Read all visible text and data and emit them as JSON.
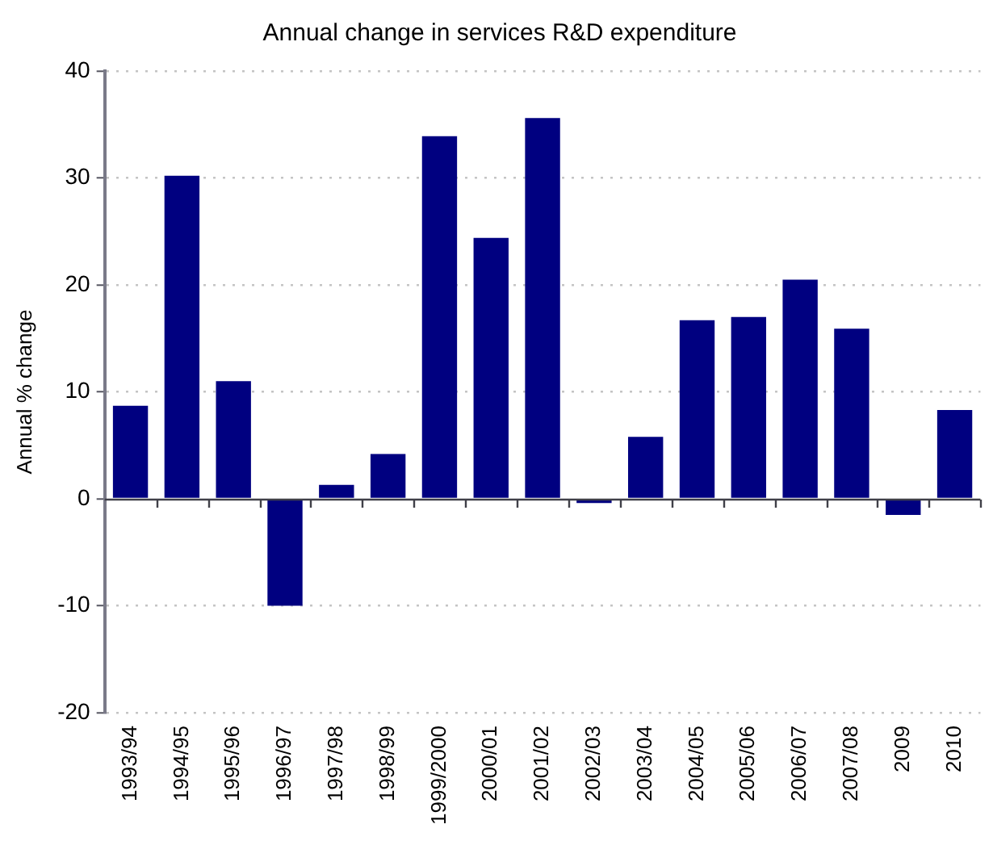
{
  "chart_data": {
    "type": "bar",
    "title": "Annual change in services R&D expenditure",
    "ylabel": "Annual % change",
    "categories": [
      "1993/94",
      "1994/95",
      "1995/96",
      "1996/97",
      "1997/98",
      "1998/99",
      "1999/2000",
      "2000/01",
      "2001/02",
      "2002/03",
      "2003/04",
      "2004/05",
      "2005/06",
      "2006/07",
      "2007/08",
      "2009",
      "2010"
    ],
    "values": [
      8.7,
      30.2,
      11.0,
      -10.0,
      1.3,
      4.2,
      33.9,
      24.4,
      35.6,
      -0.4,
      5.8,
      16.7,
      17.0,
      20.5,
      15.9,
      -1.5,
      8.3
    ],
    "color": "#000080",
    "ylim": [
      -20,
      40
    ],
    "yticks": [
      -20,
      -10,
      0,
      10,
      20,
      30,
      40
    ],
    "grid": "y",
    "legend": false
  }
}
